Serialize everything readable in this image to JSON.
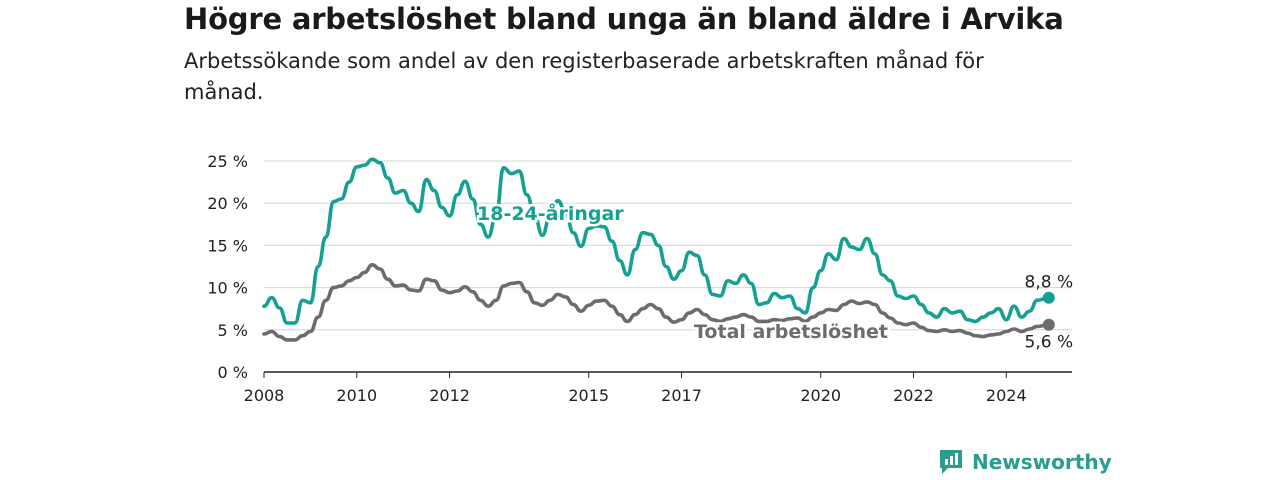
{
  "header": {
    "title": "Högre arbetslöshet bland unga än bland äldre i Arvika",
    "subtitle": "Arbetssökande som andel av den registerbaserade arbetskraften månad för månad."
  },
  "brand": {
    "name": "Newsworthy",
    "icon": "bar-chart-logo-icon",
    "color": "#2a9d8f"
  },
  "chart_data": {
    "type": "line",
    "title": "Högre arbetslöshet bland unga än bland äldre i Arvika",
    "subtitle": "Arbetssökande som andel av den registerbaserade arbetskraften månad för månad.",
    "xlabel": "",
    "ylabel": "",
    "x_ticks": [
      "2008",
      "2010",
      "2012",
      "2015",
      "2017",
      "2020",
      "2022",
      "2024"
    ],
    "x_range": [
      "2008-01",
      "2025-06"
    ],
    "y_ticks": [
      "0 %",
      "5 %",
      "10 %",
      "15 %",
      "20 %",
      "25 %"
    ],
    "ylim": [
      0,
      25
    ],
    "grid": true,
    "series": [
      {
        "name": "18-24-åringar",
        "color": "#16a091",
        "end_label": "8,8 %",
        "points": [
          [
            "2008-01",
            7.8
          ],
          [
            "2008-03",
            8.8
          ],
          [
            "2008-05",
            7.6
          ],
          [
            "2008-07",
            5.8
          ],
          [
            "2008-09",
            5.8
          ],
          [
            "2008-11",
            8.5
          ],
          [
            "2009-01",
            8.2
          ],
          [
            "2009-03",
            12.5
          ],
          [
            "2009-05",
            16.0
          ],
          [
            "2009-07",
            20.2
          ],
          [
            "2009-09",
            20.5
          ],
          [
            "2009-11",
            22.5
          ],
          [
            "2010-01",
            24.3
          ],
          [
            "2010-03",
            24.5
          ],
          [
            "2010-05",
            25.2
          ],
          [
            "2010-07",
            24.8
          ],
          [
            "2010-09",
            23.0
          ],
          [
            "2010-11",
            21.2
          ],
          [
            "2011-01",
            21.5
          ],
          [
            "2011-03",
            20.0
          ],
          [
            "2011-05",
            19.0
          ],
          [
            "2011-07",
            22.8
          ],
          [
            "2011-09",
            21.5
          ],
          [
            "2011-11",
            19.5
          ],
          [
            "2012-01",
            18.5
          ],
          [
            "2012-03",
            21.0
          ],
          [
            "2012-05",
            22.6
          ],
          [
            "2012-07",
            20.5
          ],
          [
            "2012-09",
            17.5
          ],
          [
            "2012-11",
            16.0
          ],
          [
            "2013-01",
            18.5
          ],
          [
            "2013-03",
            24.2
          ],
          [
            "2013-05",
            23.5
          ],
          [
            "2013-07",
            23.8
          ],
          [
            "2013-09",
            21.0
          ],
          [
            "2013-11",
            18.5
          ],
          [
            "2014-01",
            16.2
          ],
          [
            "2014-03",
            18.5
          ],
          [
            "2014-05",
            20.3
          ],
          [
            "2014-07",
            19.0
          ],
          [
            "2014-09",
            16.5
          ],
          [
            "2014-11",
            14.9
          ],
          [
            "2015-01",
            17.0
          ],
          [
            "2015-03",
            17.3
          ],
          [
            "2015-05",
            17.2
          ],
          [
            "2015-07",
            15.5
          ],
          [
            "2015-09",
            13.2
          ],
          [
            "2015-11",
            11.5
          ],
          [
            "2016-01",
            14.5
          ],
          [
            "2016-03",
            16.5
          ],
          [
            "2016-05",
            16.3
          ],
          [
            "2016-07",
            15.0
          ],
          [
            "2016-09",
            12.5
          ],
          [
            "2016-11",
            11.0
          ],
          [
            "2017-01",
            12.0
          ],
          [
            "2017-03",
            14.2
          ],
          [
            "2017-05",
            13.8
          ],
          [
            "2017-07",
            11.5
          ],
          [
            "2017-09",
            9.2
          ],
          [
            "2017-11",
            9.0
          ],
          [
            "2018-01",
            10.8
          ],
          [
            "2018-03",
            10.5
          ],
          [
            "2018-05",
            11.5
          ],
          [
            "2018-07",
            10.5
          ],
          [
            "2018-09",
            8.0
          ],
          [
            "2018-11",
            8.2
          ],
          [
            "2019-01",
            9.3
          ],
          [
            "2019-03",
            8.8
          ],
          [
            "2019-05",
            9.0
          ],
          [
            "2019-07",
            7.5
          ],
          [
            "2019-09",
            7.0
          ],
          [
            "2019-11",
            10.0
          ],
          [
            "2020-01",
            12.0
          ],
          [
            "2020-03",
            14.0
          ],
          [
            "2020-05",
            13.3
          ],
          [
            "2020-07",
            15.8
          ],
          [
            "2020-09",
            14.8
          ],
          [
            "2020-11",
            14.5
          ],
          [
            "2021-01",
            15.8
          ],
          [
            "2021-03",
            14.0
          ],
          [
            "2021-05",
            11.5
          ],
          [
            "2021-07",
            10.8
          ],
          [
            "2021-09",
            9.0
          ],
          [
            "2021-11",
            8.7
          ],
          [
            "2022-01",
            9.0
          ],
          [
            "2022-03",
            8.0
          ],
          [
            "2022-05",
            7.0
          ],
          [
            "2022-07",
            6.5
          ],
          [
            "2022-09",
            7.5
          ],
          [
            "2022-11",
            7.0
          ],
          [
            "2023-01",
            7.2
          ],
          [
            "2023-03",
            6.2
          ],
          [
            "2023-05",
            6.0
          ],
          [
            "2023-07",
            6.5
          ],
          [
            "2023-09",
            7.0
          ],
          [
            "2023-11",
            7.5
          ],
          [
            "2024-01",
            6.2
          ],
          [
            "2024-03",
            7.8
          ],
          [
            "2024-05",
            6.5
          ],
          [
            "2024-07",
            7.2
          ],
          [
            "2024-09",
            8.5
          ],
          [
            "2024-12",
            8.8
          ]
        ]
      },
      {
        "name": "Total arbetslöshet",
        "color": "#6e6a70",
        "end_label": "5,6 %",
        "points": [
          [
            "2008-01",
            4.5
          ],
          [
            "2008-03",
            4.8
          ],
          [
            "2008-05",
            4.2
          ],
          [
            "2008-07",
            3.8
          ],
          [
            "2008-09",
            3.8
          ],
          [
            "2008-11",
            4.3
          ],
          [
            "2009-01",
            4.8
          ],
          [
            "2009-03",
            6.5
          ],
          [
            "2009-05",
            8.5
          ],
          [
            "2009-07",
            10.0
          ],
          [
            "2009-09",
            10.2
          ],
          [
            "2009-11",
            10.8
          ],
          [
            "2010-01",
            11.2
          ],
          [
            "2010-03",
            11.8
          ],
          [
            "2010-05",
            12.7
          ],
          [
            "2010-07",
            12.2
          ],
          [
            "2010-09",
            11.0
          ],
          [
            "2010-11",
            10.2
          ],
          [
            "2011-01",
            10.3
          ],
          [
            "2011-03",
            9.7
          ],
          [
            "2011-05",
            9.6
          ],
          [
            "2011-07",
            11.0
          ],
          [
            "2011-09",
            10.8
          ],
          [
            "2011-11",
            9.7
          ],
          [
            "2012-01",
            9.4
          ],
          [
            "2012-03",
            9.6
          ],
          [
            "2012-05",
            10.1
          ],
          [
            "2012-07",
            9.5
          ],
          [
            "2012-09",
            8.5
          ],
          [
            "2012-11",
            7.8
          ],
          [
            "2013-01",
            8.5
          ],
          [
            "2013-03",
            10.2
          ],
          [
            "2013-05",
            10.5
          ],
          [
            "2013-07",
            10.6
          ],
          [
            "2013-09",
            9.5
          ],
          [
            "2013-11",
            8.2
          ],
          [
            "2014-01",
            7.9
          ],
          [
            "2014-03",
            8.5
          ],
          [
            "2014-05",
            9.2
          ],
          [
            "2014-07",
            8.9
          ],
          [
            "2014-09",
            8.0
          ],
          [
            "2014-11",
            7.2
          ],
          [
            "2015-01",
            7.9
          ],
          [
            "2015-03",
            8.4
          ],
          [
            "2015-05",
            8.5
          ],
          [
            "2015-07",
            7.8
          ],
          [
            "2015-09",
            6.8
          ],
          [
            "2015-11",
            6.0
          ],
          [
            "2016-01",
            6.8
          ],
          [
            "2016-03",
            7.5
          ],
          [
            "2016-05",
            8.0
          ],
          [
            "2016-07",
            7.5
          ],
          [
            "2016-09",
            6.5
          ],
          [
            "2016-11",
            5.9
          ],
          [
            "2017-01",
            6.2
          ],
          [
            "2017-03",
            7.0
          ],
          [
            "2017-05",
            7.4
          ],
          [
            "2017-07",
            6.8
          ],
          [
            "2017-09",
            6.2
          ],
          [
            "2017-11",
            6.0
          ],
          [
            "2018-01",
            6.3
          ],
          [
            "2018-03",
            6.5
          ],
          [
            "2018-05",
            6.8
          ],
          [
            "2018-07",
            6.5
          ],
          [
            "2018-09",
            6.0
          ],
          [
            "2018-11",
            6.0
          ],
          [
            "2019-01",
            6.2
          ],
          [
            "2019-03",
            6.1
          ],
          [
            "2019-05",
            6.3
          ],
          [
            "2019-07",
            6.4
          ],
          [
            "2019-09",
            6.0
          ],
          [
            "2019-11",
            6.5
          ],
          [
            "2020-01",
            7.0
          ],
          [
            "2020-03",
            7.4
          ],
          [
            "2020-05",
            7.3
          ],
          [
            "2020-07",
            8.0
          ],
          [
            "2020-09",
            8.4
          ],
          [
            "2020-11",
            8.1
          ],
          [
            "2021-01",
            8.3
          ],
          [
            "2021-03",
            8.0
          ],
          [
            "2021-05",
            7.0
          ],
          [
            "2021-07",
            6.4
          ],
          [
            "2021-09",
            5.8
          ],
          [
            "2021-11",
            5.6
          ],
          [
            "2022-01",
            5.8
          ],
          [
            "2022-03",
            5.3
          ],
          [
            "2022-05",
            4.9
          ],
          [
            "2022-07",
            4.8
          ],
          [
            "2022-09",
            5.0
          ],
          [
            "2022-11",
            4.8
          ],
          [
            "2023-01",
            4.9
          ],
          [
            "2023-03",
            4.6
          ],
          [
            "2023-05",
            4.3
          ],
          [
            "2023-07",
            4.2
          ],
          [
            "2023-09",
            4.4
          ],
          [
            "2023-11",
            4.5
          ],
          [
            "2024-01",
            4.8
          ],
          [
            "2024-03",
            5.1
          ],
          [
            "2024-05",
            4.8
          ],
          [
            "2024-07",
            5.1
          ],
          [
            "2024-09",
            5.4
          ],
          [
            "2024-12",
            5.6
          ]
        ]
      }
    ]
  }
}
